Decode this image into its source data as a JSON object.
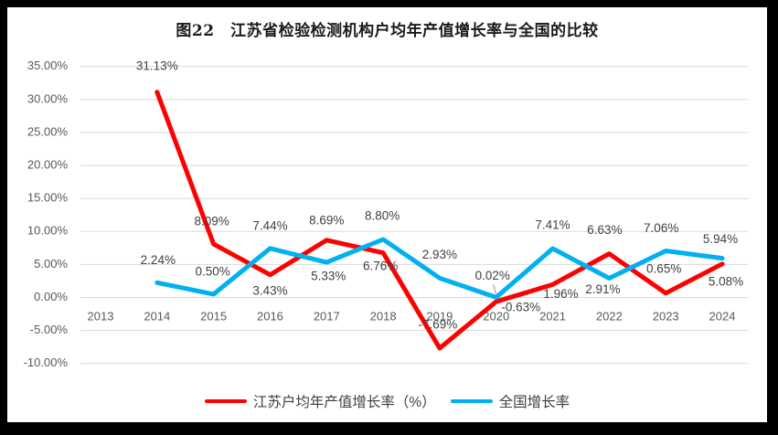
{
  "title": "图22　江苏省检验检测机构户均年产值增长率与全国的比较",
  "chart_data": {
    "type": "line",
    "categories": [
      "2013",
      "2014",
      "2015",
      "2016",
      "2017",
      "2018",
      "2019",
      "2020",
      "2021",
      "2022",
      "2023",
      "2024"
    ],
    "series": [
      {
        "key": "jiangsu",
        "name": "江苏户均年产值增长率（%）",
        "color": "#FF0000",
        "values": [
          null,
          31.13,
          8.09,
          3.43,
          8.69,
          6.76,
          -7.69,
          -0.63,
          1.96,
          6.63,
          0.65,
          5.08
        ],
        "labels": [
          "",
          "31.13%",
          "8.09%",
          "3.43%",
          "8.69%",
          "6.76%",
          "-7.69%",
          "-0.63%",
          "1.96%",
          "6.63%",
          "0.65%",
          "5.08%"
        ],
        "label_offsets": [
          [
            0,
            0
          ],
          [
            0,
            -28
          ],
          [
            -2,
            -24
          ],
          [
            0,
            18
          ],
          [
            0,
            -21
          ],
          [
            -3,
            15
          ],
          [
            -2,
            -25
          ],
          [
            27,
            7
          ],
          [
            9,
            11
          ],
          [
            -5,
            -25
          ],
          [
            -2,
            -26
          ],
          [
            4,
            20
          ]
        ]
      },
      {
        "key": "national",
        "name": "全国增长率",
        "color": "#00B0F0",
        "values": [
          null,
          2.24,
          0.5,
          7.44,
          5.33,
          8.8,
          2.93,
          0.02,
          7.41,
          2.91,
          7.06,
          5.94
        ],
        "labels": [
          "",
          "2.24%",
          "0.50%",
          "7.44%",
          "5.33%",
          "8.80%",
          "2.93%",
          "0.02%",
          "7.41%",
          "2.91%",
          "7.06%",
          "5.94%"
        ],
        "label_offsets": [
          [
            0,
            0
          ],
          [
            1,
            -24
          ],
          [
            -1,
            -24
          ],
          [
            0,
            -24
          ],
          [
            2,
            16
          ],
          [
            -1,
            -25
          ],
          [
            0,
            -25
          ],
          [
            -4,
            -23
          ],
          [
            0,
            -25
          ],
          [
            -7,
            13
          ],
          [
            -5,
            -24
          ],
          [
            -2,
            -20
          ]
        ]
      }
    ],
    "y_ticks": [
      {
        "value": 35,
        "label": "35.00%"
      },
      {
        "value": 30,
        "label": "30.00%"
      },
      {
        "value": 25,
        "label": "25.00%"
      },
      {
        "value": 20,
        "label": "20.00%"
      },
      {
        "value": 15,
        "label": "15.00%"
      },
      {
        "value": 10,
        "label": "10.00%"
      },
      {
        "value": 5,
        "label": "5.00%"
      },
      {
        "value": 0,
        "label": "0.00%"
      },
      {
        "value": -5,
        "label": "-5.00%"
      },
      {
        "value": -10,
        "label": "-10.00%"
      }
    ],
    "ylim": [
      -10,
      35
    ],
    "grid": true,
    "legend_position": "bottom",
    "leader_line": {
      "series": 1,
      "index": 7
    },
    "colors": {
      "grid": "#D9D9D9",
      "axis_text": "#595959",
      "label_text": "#404040",
      "leader": "#A6A6A6",
      "frame": "#000000",
      "background": "#FFFFFF"
    }
  }
}
